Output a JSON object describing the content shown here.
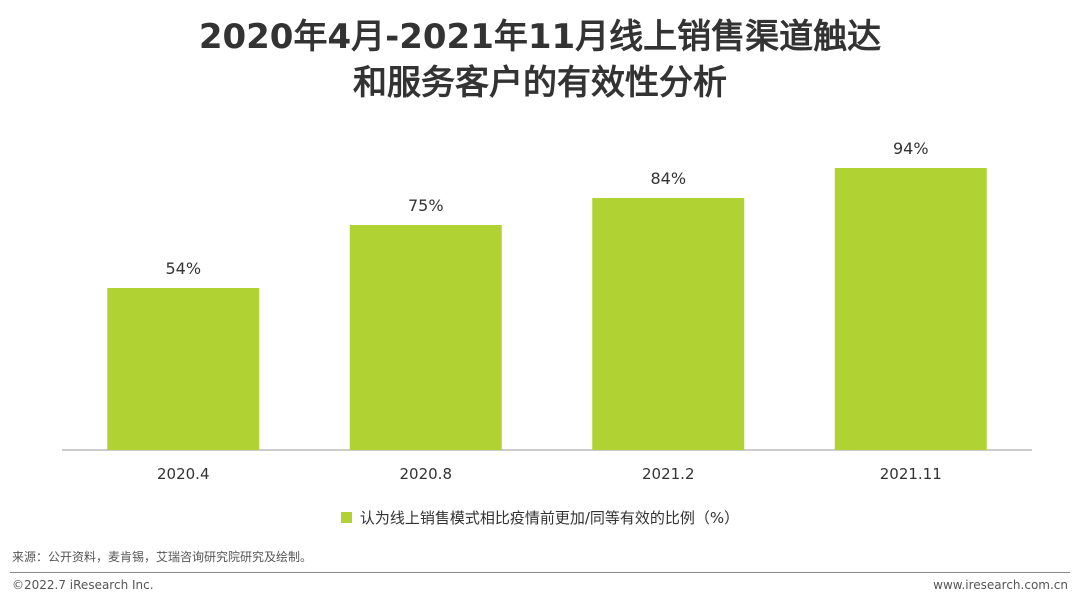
{
  "header": {
    "title_line1": "2020年4月-2021年11月线上销售渠道触达",
    "title_line2": "和服务客户的有效性分析"
  },
  "chart_data": {
    "type": "bar",
    "categories": [
      "2020.4",
      "2020.8",
      "2021.2",
      "2021.11"
    ],
    "series": [
      {
        "name": "认为线上销售模式相比疫情前更加/同等有效的比例（%）",
        "values": [
          54,
          75,
          84,
          94
        ]
      }
    ],
    "value_labels": [
      "54%",
      "75%",
      "84%",
      "94%"
    ],
    "ylim": [
      0,
      100
    ],
    "grid": false,
    "legend_position": "bottom",
    "bar_color": "#b0d232"
  },
  "legend": {
    "label": "认为线上销售模式相比疫情前更加/同等有效的比例（%）"
  },
  "footer": {
    "source": "来源：公开资料，麦肯锡，艾瑞咨询研究院研究及绘制。",
    "copyright": "©2022.7 iResearch Inc.",
    "website": "www.iresearch.com.cn"
  }
}
